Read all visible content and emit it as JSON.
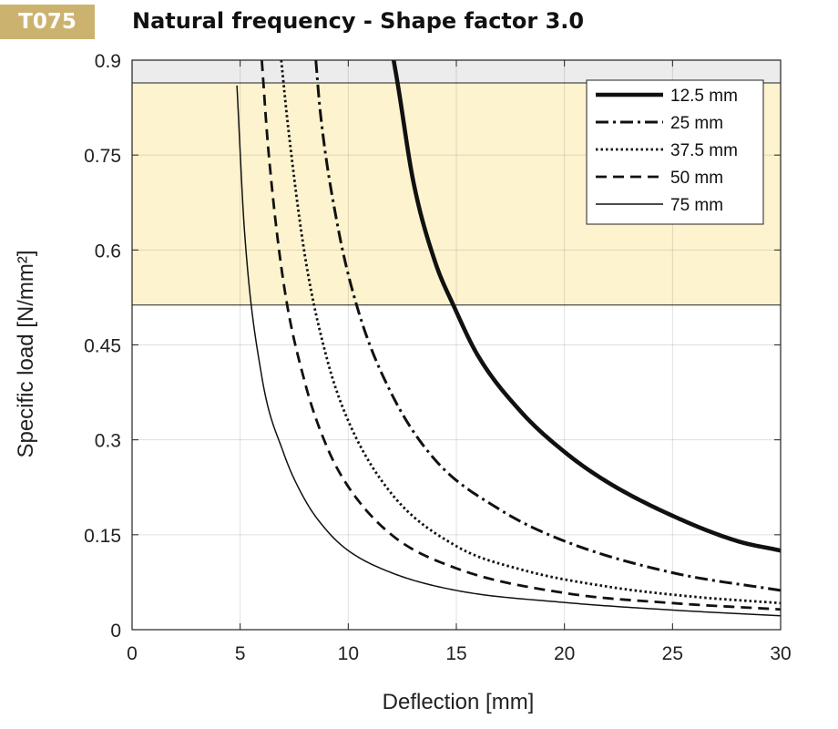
{
  "header": {
    "badge": "T075",
    "badge_color": "#cbb36f",
    "title": "Natural frequency - Shape factor 3.0"
  },
  "chart_data": {
    "type": "line",
    "title": "Natural frequency - Shape factor 3.0",
    "xlabel": "Deflection  [mm]",
    "ylabel": "Specific load [N/mm²]",
    "xlim": [
      0,
      30
    ],
    "ylim": [
      0,
      0.9
    ],
    "xticks": [
      "0",
      "5",
      "10",
      "15",
      "20",
      "25",
      "30"
    ],
    "yticks": [
      "0",
      "0.15",
      "0.3",
      "0.45",
      "0.6",
      "0.75",
      "0.9"
    ],
    "grid": true,
    "legend_position": "top-right",
    "bands": [
      {
        "from": 0.513,
        "to": 0.864,
        "color": "#fdf3cf"
      },
      {
        "from": 0.864,
        "to": 0.9,
        "color": "#ececec"
      }
    ],
    "series": [
      {
        "name": "12.5 mm",
        "style": "solid-thick",
        "color": "#111111",
        "x": [
          12.1,
          12.3,
          13,
          14,
          14.9,
          16,
          18,
          20,
          22,
          25,
          28,
          30
        ],
        "y": [
          0.9,
          0.86,
          0.71,
          0.583,
          0.51,
          0.433,
          0.344,
          0.281,
          0.233,
          0.18,
          0.14,
          0.125
        ]
      },
      {
        "name": "25 mm",
        "style": "dashdot",
        "color": "#111111",
        "x": [
          8.5,
          8.7,
          9.5,
          10.5,
          12,
          14,
          17,
          20,
          25,
          30
        ],
        "y": [
          0.9,
          0.82,
          0.64,
          0.5,
          0.373,
          0.269,
          0.19,
          0.14,
          0.09,
          0.062
        ]
      },
      {
        "name": "37.5 mm",
        "style": "dotted",
        "color": "#111111",
        "x": [
          6.9,
          7.2,
          8,
          9,
          10,
          12,
          15,
          18,
          22,
          26,
          30
        ],
        "y": [
          0.9,
          0.8,
          0.59,
          0.43,
          0.33,
          0.215,
          0.132,
          0.095,
          0.068,
          0.052,
          0.042
        ]
      },
      {
        "name": "50 mm",
        "style": "dashed",
        "color": "#111111",
        "x": [
          6,
          6.3,
          7,
          8,
          9,
          10,
          12,
          15,
          20,
          25,
          30
        ],
        "y": [
          0.9,
          0.76,
          0.55,
          0.39,
          0.29,
          0.226,
          0.15,
          0.097,
          0.058,
          0.042,
          0.032
        ]
      },
      {
        "name": "75 mm",
        "style": "solid-thin",
        "color": "#111111",
        "x": [
          4.85,
          5.2,
          6,
          7,
          8,
          9,
          10,
          12,
          15,
          20,
          25,
          30
        ],
        "y": [
          0.86,
          0.63,
          0.4,
          0.28,
          0.205,
          0.157,
          0.125,
          0.09,
          0.062,
          0.043,
          0.031,
          0.022
        ]
      }
    ]
  }
}
